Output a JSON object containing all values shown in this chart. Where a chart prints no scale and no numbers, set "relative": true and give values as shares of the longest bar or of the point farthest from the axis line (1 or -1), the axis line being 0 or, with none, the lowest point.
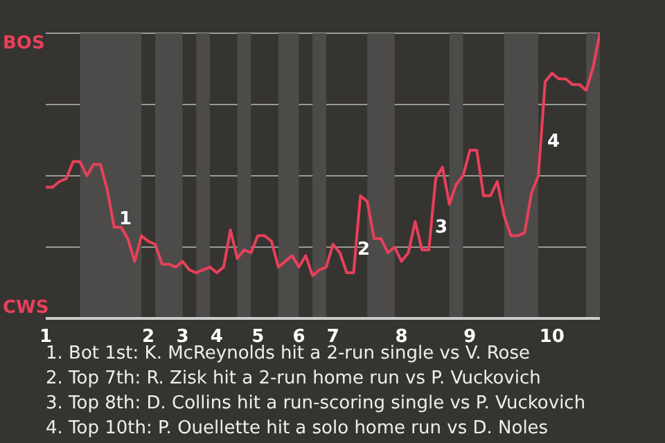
{
  "chart_data": {
    "type": "line",
    "relative": true,
    "categories": [
      "1",
      null,
      null,
      null,
      null,
      null,
      null,
      null,
      null,
      null,
      null,
      null,
      null,
      null,
      null,
      "2",
      null,
      null,
      null,
      null,
      "3",
      null,
      null,
      null,
      null,
      "4",
      null,
      null,
      null,
      null,
      null,
      "5",
      null,
      null,
      null,
      null,
      null,
      "6",
      null,
      null,
      null,
      null,
      "7",
      null,
      null,
      null,
      null,
      null,
      null,
      null,
      null,
      null,
      "8",
      null,
      null,
      null,
      null,
      null,
      null,
      null,
      null,
      null,
      "9",
      null,
      null,
      null,
      null,
      null,
      null,
      null,
      null,
      null,
      null,
      null,
      "10",
      null,
      null,
      null,
      null,
      null,
      null,
      null
    ],
    "series": [
      {
        "color": "#e8405a",
        "values": [
          0.46,
          0.46,
          0.48,
          0.49,
          0.55,
          0.55,
          0.5,
          0.54,
          0.54,
          0.45,
          0.32,
          0.32,
          0.28,
          0.2,
          0.29,
          0.27,
          0.26,
          0.19,
          0.19,
          0.18,
          0.2,
          0.17,
          0.16,
          0.17,
          0.18,
          0.16,
          0.18,
          0.31,
          0.21,
          0.24,
          0.23,
          0.29,
          0.29,
          0.27,
          0.18,
          0.2,
          0.22,
          0.18,
          0.22,
          0.15,
          0.17,
          0.18,
          0.26,
          0.23,
          0.16,
          0.16,
          0.43,
          0.41,
          0.28,
          0.28,
          0.23,
          0.25,
          0.2,
          0.23,
          0.34,
          0.24,
          0.24,
          0.49,
          0.53,
          0.4,
          0.47,
          0.5,
          0.59,
          0.59,
          0.43,
          0.43,
          0.48,
          0.36,
          0.29,
          0.29,
          0.3,
          0.44,
          0.5,
          0.83,
          0.86,
          0.84,
          0.84,
          0.82,
          0.82,
          0.8,
          0.88,
          1.0
        ]
      }
    ],
    "grid": "y",
    "marker": "none",
    "line_style": "solid",
    "legend": false,
    "annotations": [
      "BOS",
      "CWS",
      "1",
      "2",
      "3",
      "4",
      "1. Bot 1st: K. McReynolds hit a 2-run single vs V. Rose",
      "2. Top 7th: R. Zisk hit a 2-run home run vs P. Vuckovich",
      "3. Top 8th: D. Collins hit a run-scoring single vs P. Vuckovich",
      "4. Top 10th: P. Ouellette hit a solo home run vs D. Noles"
    ]
  }
}
